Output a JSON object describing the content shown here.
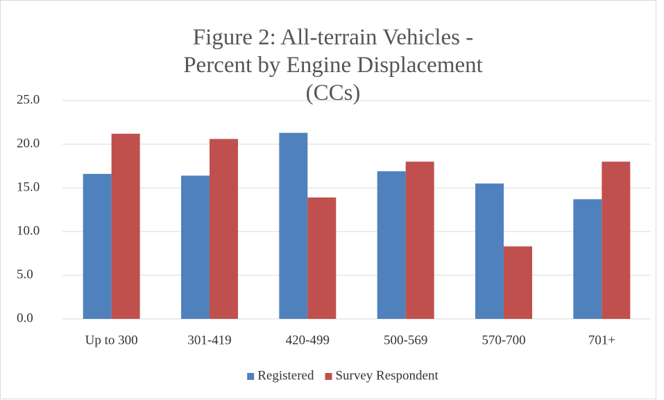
{
  "chart_data": {
    "type": "bar",
    "title": "Figure 2: All-terrain Vehicles - Percent by Engine Displacement (CCs)",
    "categories": [
      "Up to 300",
      "301-419",
      "420-499",
      "500-569",
      "570-700",
      "701+"
    ],
    "series": [
      {
        "name": "Registered",
        "color": "#4f81bd",
        "values": [
          16.6,
          16.4,
          21.3,
          16.9,
          15.5,
          13.7
        ]
      },
      {
        "name": "Survey Respondent",
        "color": "#c0504d",
        "values": [
          21.2,
          20.6,
          13.9,
          18.0,
          8.3,
          18.0
        ]
      }
    ],
    "ylim": [
      0,
      25
    ],
    "yticks": [
      {
        "value": 0,
        "label": "0.0"
      },
      {
        "value": 5,
        "label": "5.0"
      },
      {
        "value": 10,
        "label": "10.0"
      },
      {
        "value": 15,
        "label": "15.0"
      },
      {
        "value": 20,
        "label": "20.0"
      },
      {
        "value": 25,
        "label": "25.0"
      }
    ],
    "grid": true,
    "legend": "bottom"
  }
}
